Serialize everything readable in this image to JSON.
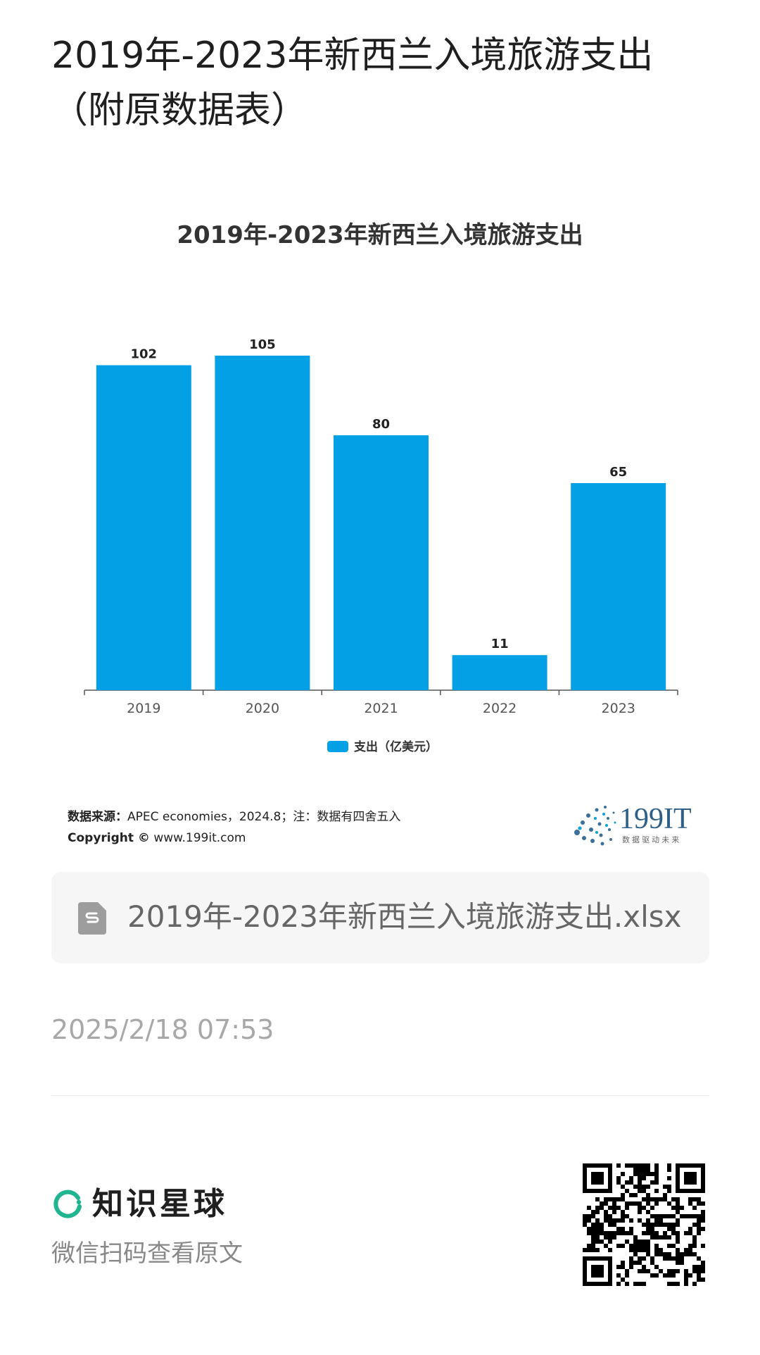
{
  "page": {
    "title": "2019年-2023年新西兰入境旅游支出（附原数据表）",
    "file_name": "2019年-2023年新西兰入境旅游支出.xlsx",
    "timestamp": "2025/2/18 07:53",
    "brand_name": "知识星球",
    "scan_hint": "微信扫码查看原文",
    "accent_color": "#04a0e6",
    "brand_color": "#1fb58f"
  },
  "source": {
    "label": "数据来源：",
    "text": "APEC economies，2024.8；注：数据有四舍五入",
    "copyright_label": "Copyright ©",
    "copyright_site": "www.199it.com"
  },
  "logo": {
    "text": "199IT",
    "tagline": "数 据 驱 动 未 来"
  },
  "chart_data": {
    "type": "bar",
    "title": "2019年-2023年新西兰入境旅游支出",
    "categories": [
      "2019",
      "2020",
      "2021",
      "2022",
      "2023"
    ],
    "series": [
      {
        "name": "支出（亿美元）",
        "values": [
          102,
          105,
          80,
          11,
          65
        ],
        "color": "#04a0e6"
      }
    ],
    "ylim": [
      0,
      105
    ],
    "grid": false,
    "legend": "bottom-center",
    "data_labels": true
  }
}
